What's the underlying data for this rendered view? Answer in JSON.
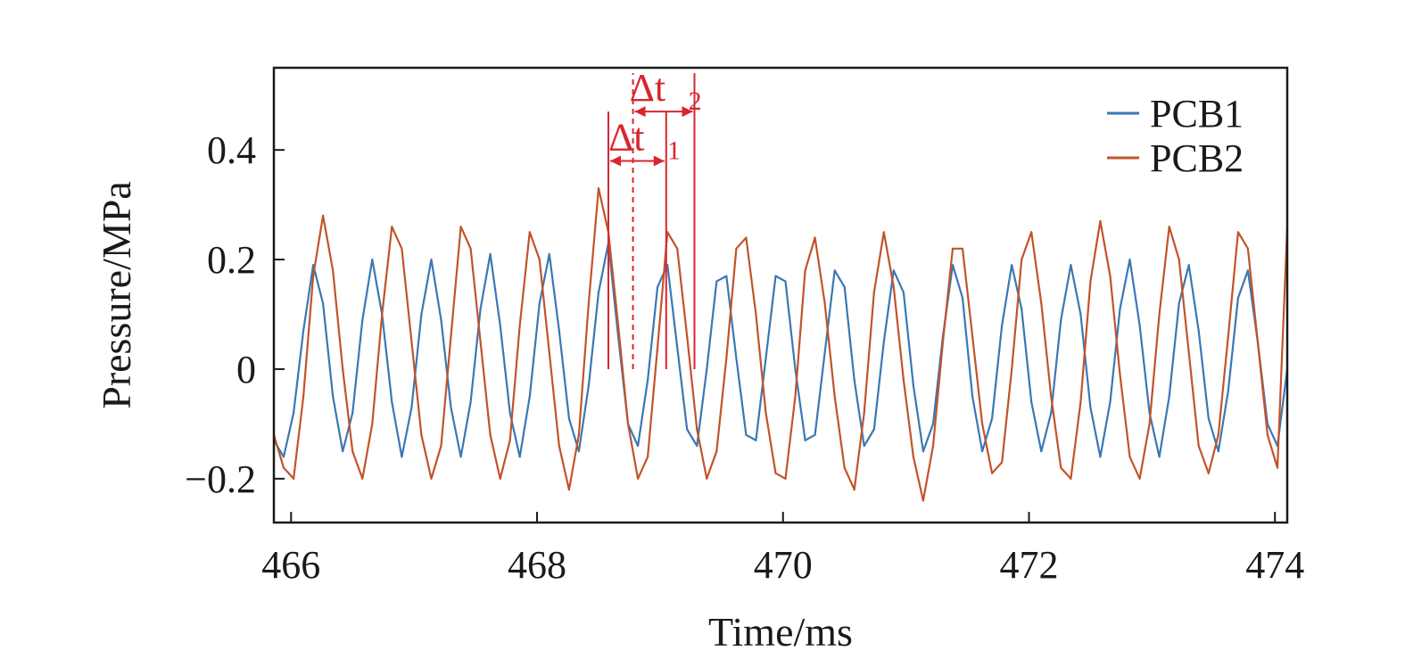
{
  "chart_data": {
    "type": "line",
    "title": "",
    "xlabel": "Time/ms",
    "ylabel": "Pressure/MPa",
    "xlim": [
      465.86,
      474.1
    ],
    "ylim": [
      -0.28,
      0.55
    ],
    "xticks": [
      466,
      468,
      470,
      472,
      474
    ],
    "xtick_labels": [
      "466",
      "468",
      "470",
      "472",
      "474"
    ],
    "yticks": [
      -0.2,
      0,
      0.2,
      0.4
    ],
    "ytick_labels": [
      "−0.2",
      "0",
      "0.2",
      "0.4"
    ],
    "grid": false,
    "legend_position": "top-right",
    "series": [
      {
        "name": "PCB1",
        "color": "#3a78b4",
        "x": [
          465.86,
          465.94,
          466.02,
          466.1,
          466.18,
          466.26,
          466.34,
          466.42,
          466.5,
          466.58,
          466.66,
          466.74,
          466.82,
          466.9,
          466.98,
          467.06,
          467.14,
          467.22,
          467.3,
          467.38,
          467.46,
          467.54,
          467.62,
          467.7,
          467.78,
          467.86,
          467.94,
          468.02,
          468.1,
          468.18,
          468.26,
          468.34,
          468.42,
          468.5,
          468.58,
          468.66,
          468.74,
          468.82,
          468.9,
          468.98,
          469.06,
          469.14,
          469.22,
          469.3,
          469.38,
          469.46,
          469.54,
          469.62,
          469.7,
          469.78,
          469.86,
          469.94,
          470.02,
          470.1,
          470.18,
          470.26,
          470.34,
          470.42,
          470.5,
          470.58,
          470.66,
          470.74,
          470.82,
          470.9,
          470.98,
          471.06,
          471.14,
          471.22,
          471.3,
          471.38,
          471.46,
          471.54,
          471.62,
          471.7,
          471.78,
          471.86,
          471.94,
          472.02,
          472.1,
          472.18,
          472.26,
          472.34,
          472.42,
          472.5,
          472.58,
          472.66,
          472.74,
          472.82,
          472.9,
          472.98,
          473.06,
          473.14,
          473.22,
          473.3,
          473.38,
          473.46,
          473.54,
          473.62,
          473.7,
          473.78,
          473.86,
          473.94,
          474.02,
          474.1
        ],
        "values": [
          -0.13,
          -0.16,
          -0.08,
          0.07,
          0.19,
          0.12,
          -0.05,
          -0.15,
          -0.08,
          0.09,
          0.2,
          0.1,
          -0.06,
          -0.16,
          -0.07,
          0.1,
          0.2,
          0.09,
          -0.07,
          -0.16,
          -0.06,
          0.11,
          0.21,
          0.08,
          -0.08,
          -0.16,
          -0.05,
          0.12,
          0.21,
          0.07,
          -0.09,
          -0.15,
          -0.03,
          0.14,
          0.23,
          0.06,
          -0.1,
          -0.14,
          -0.02,
          0.15,
          0.19,
          0.04,
          -0.11,
          -0.14,
          0.0,
          0.16,
          0.17,
          0.02,
          -0.12,
          -0.13,
          0.02,
          0.17,
          0.16,
          0.0,
          -0.13,
          -0.12,
          0.03,
          0.18,
          0.15,
          -0.02,
          -0.14,
          -0.11,
          0.05,
          0.18,
          0.14,
          -0.03,
          -0.15,
          -0.1,
          0.06,
          0.19,
          0.13,
          -0.05,
          -0.15,
          -0.09,
          0.08,
          0.19,
          0.11,
          -0.06,
          -0.15,
          -0.08,
          0.09,
          0.19,
          0.1,
          -0.07,
          -0.16,
          -0.06,
          0.11,
          0.2,
          0.08,
          -0.08,
          -0.16,
          -0.05,
          0.12,
          0.19,
          0.07,
          -0.09,
          -0.15,
          -0.04,
          0.13,
          0.18,
          0.05,
          -0.1,
          -0.14,
          0.0
        ]
      },
      {
        "name": "PCB2",
        "color": "#c2532a",
        "x": [
          465.86,
          465.94,
          466.02,
          466.1,
          466.18,
          466.26,
          466.34,
          466.42,
          466.5,
          466.58,
          466.66,
          466.74,
          466.82,
          466.9,
          466.98,
          467.06,
          467.14,
          467.22,
          467.3,
          467.38,
          467.46,
          467.54,
          467.62,
          467.7,
          467.78,
          467.86,
          467.94,
          468.02,
          468.1,
          468.18,
          468.26,
          468.34,
          468.42,
          468.5,
          468.58,
          468.66,
          468.74,
          468.82,
          468.9,
          468.98,
          469.06,
          469.14,
          469.22,
          469.3,
          469.38,
          469.46,
          469.54,
          469.62,
          469.7,
          469.78,
          469.86,
          469.94,
          470.02,
          470.1,
          470.18,
          470.26,
          470.34,
          470.42,
          470.5,
          470.58,
          470.66,
          470.74,
          470.82,
          470.9,
          470.98,
          471.06,
          471.14,
          471.22,
          471.3,
          471.38,
          471.46,
          471.54,
          471.62,
          471.7,
          471.78,
          471.86,
          471.94,
          472.02,
          472.1,
          472.18,
          472.26,
          472.34,
          472.42,
          472.5,
          472.58,
          472.66,
          472.74,
          472.82,
          472.9,
          472.98,
          473.06,
          473.14,
          473.22,
          473.3,
          473.38,
          473.46,
          473.54,
          473.62,
          473.7,
          473.78,
          473.86,
          473.94,
          474.02,
          474.1
        ],
        "values": [
          -0.12,
          -0.18,
          -0.2,
          -0.05,
          0.17,
          0.28,
          0.18,
          0.0,
          -0.15,
          -0.2,
          -0.1,
          0.1,
          0.26,
          0.22,
          0.05,
          -0.12,
          -0.2,
          -0.14,
          0.06,
          0.26,
          0.22,
          0.05,
          -0.12,
          -0.2,
          -0.13,
          0.08,
          0.25,
          0.2,
          0.03,
          -0.14,
          -0.22,
          -0.12,
          0.12,
          0.33,
          0.25,
          0.08,
          -0.1,
          -0.2,
          -0.16,
          0.04,
          0.25,
          0.22,
          0.06,
          -0.11,
          -0.2,
          -0.15,
          0.02,
          0.22,
          0.24,
          0.1,
          -0.08,
          -0.19,
          -0.2,
          -0.05,
          0.18,
          0.24,
          0.12,
          -0.05,
          -0.18,
          -0.22,
          -0.08,
          0.14,
          0.25,
          0.15,
          -0.02,
          -0.16,
          -0.24,
          -0.14,
          0.05,
          0.22,
          0.22,
          0.06,
          -0.1,
          -0.19,
          -0.17,
          0.0,
          0.2,
          0.25,
          0.12,
          -0.05,
          -0.18,
          -0.2,
          -0.06,
          0.16,
          0.27,
          0.17,
          -0.01,
          -0.16,
          -0.2,
          -0.1,
          0.1,
          0.26,
          0.2,
          0.03,
          -0.14,
          -0.19,
          -0.12,
          0.06,
          0.25,
          0.22,
          0.05,
          -0.12,
          -0.18,
          0.26
        ]
      }
    ],
    "annotations": [
      {
        "label": "Δt",
        "subscript": "1",
        "color": "#d8262e",
        "from_x": 468.58,
        "to_x": 469.05,
        "marker_y_from": 0.0,
        "marker_y_to": 0.47,
        "arrow_y": 0.38
      },
      {
        "label": "Δt",
        "subscript": "2",
        "color": "#d8262e",
        "from_x": 468.78,
        "to_x": 469.28,
        "marker_y_from": 0.0,
        "marker_y_to": 0.54,
        "arrow_y": 0.47,
        "dashed_start": true
      }
    ]
  }
}
